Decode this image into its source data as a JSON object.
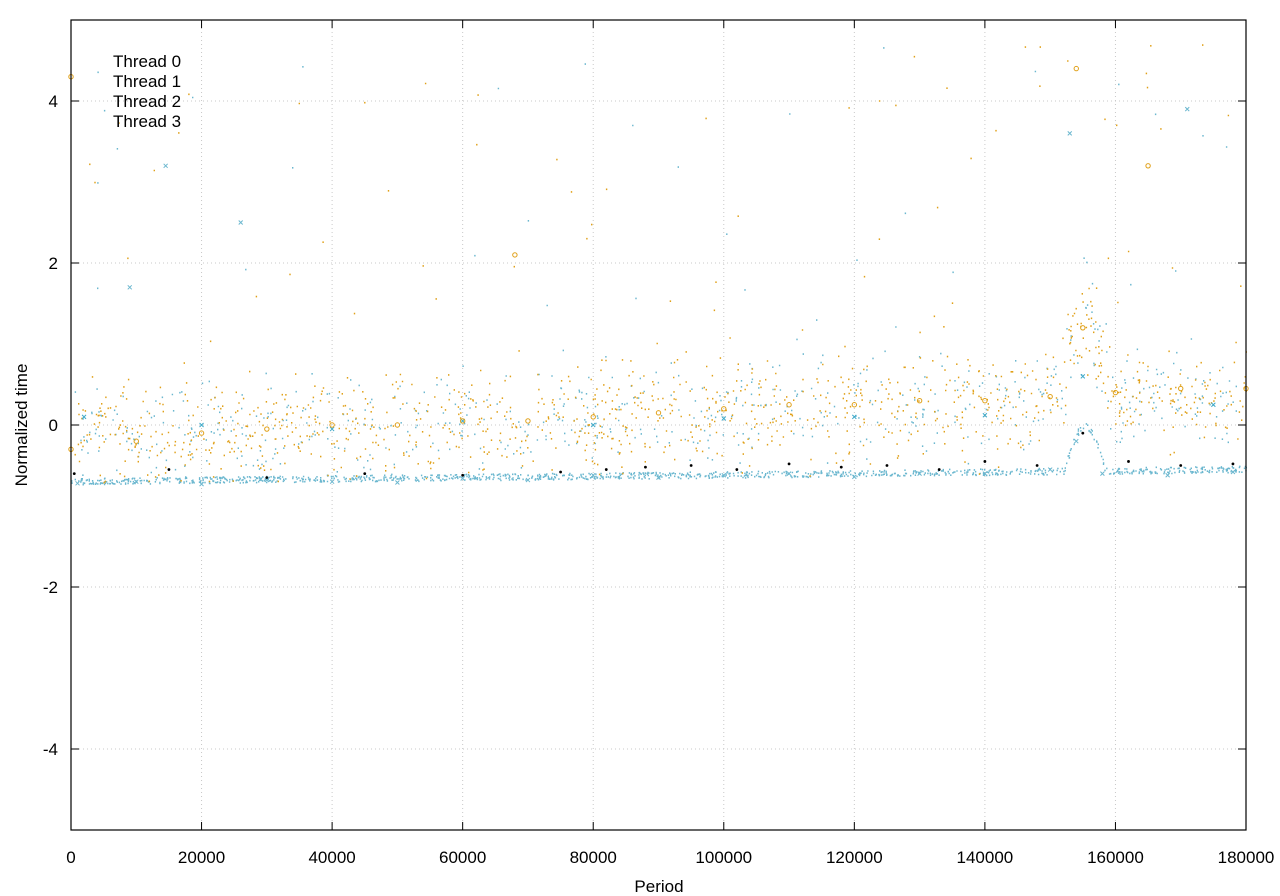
{
  "chart_data": {
    "type": "scatter",
    "xlabel": "Period",
    "ylabel": "Normalized time",
    "xlim": [
      0,
      180000
    ],
    "ylim": [
      -5,
      5
    ],
    "x_ticks": [
      "0",
      "20000",
      "40000",
      "60000",
      "80000",
      "100000",
      "120000",
      "140000",
      "160000",
      "180000"
    ],
    "y_ticks": [
      "-4",
      "-2",
      "0",
      "2",
      "4"
    ],
    "grid": true,
    "legend_position": "top-left",
    "series": [
      {
        "name": "Thread 0",
        "color": "#000000",
        "marker": "dot",
        "points": [
          [
            500,
            -0.6
          ],
          [
            15000,
            -0.55
          ],
          [
            30000,
            -0.65
          ],
          [
            45000,
            -0.6
          ],
          [
            60000,
            -0.62
          ],
          [
            75000,
            -0.58
          ],
          [
            82000,
            -0.55
          ],
          [
            88000,
            -0.52
          ],
          [
            95000,
            -0.5
          ],
          [
            102000,
            -0.55
          ],
          [
            110000,
            -0.48
          ],
          [
            118000,
            -0.52
          ],
          [
            125000,
            -0.5
          ],
          [
            133000,
            -0.55
          ],
          [
            140000,
            -0.45
          ],
          [
            148000,
            -0.5
          ],
          [
            155000,
            -0.1
          ],
          [
            162000,
            -0.45
          ],
          [
            170000,
            -0.5
          ],
          [
            178000,
            -0.48
          ]
        ]
      },
      {
        "name": "Thread 1",
        "color": "#6bb7cf",
        "marker": "cross",
        "points": [
          [
            1000,
            -0.72
          ],
          [
            10000,
            -0.7
          ],
          [
            20000,
            -0.73
          ],
          [
            30000,
            -0.68
          ],
          [
            40000,
            -0.7
          ],
          [
            50000,
            -0.71
          ],
          [
            60000,
            -0.66
          ],
          [
            70000,
            -0.68
          ],
          [
            80000,
            -0.62
          ],
          [
            90000,
            -0.65
          ],
          [
            100000,
            -0.62
          ],
          [
            110000,
            -0.6
          ],
          [
            120000,
            -0.64
          ],
          [
            130000,
            -0.6
          ],
          [
            140000,
            -0.6
          ],
          [
            150000,
            -0.55
          ],
          [
            154000,
            -0.2
          ],
          [
            158000,
            -0.6
          ],
          [
            168000,
            -0.62
          ],
          [
            178000,
            -0.58
          ],
          [
            14500,
            3.2
          ],
          [
            26000,
            2.5
          ],
          [
            9000,
            1.7
          ],
          [
            153000,
            3.6
          ],
          [
            171000,
            3.9
          ]
        ]
      },
      {
        "name": "Thread 2",
        "color": "#3ea9c9",
        "marker": "cross",
        "points": [
          [
            2000,
            0.1
          ],
          [
            20000,
            0.0
          ],
          [
            40000,
            -0.05
          ],
          [
            60000,
            0.05
          ],
          [
            80000,
            0.0
          ],
          [
            100000,
            0.08
          ],
          [
            120000,
            0.1
          ],
          [
            140000,
            0.12
          ],
          [
            155000,
            0.6
          ],
          [
            175000,
            0.25
          ]
        ]
      },
      {
        "name": "Thread 3",
        "color": "#e0a018",
        "marker": "circle",
        "points": [
          [
            0,
            -0.3
          ],
          [
            10000,
            -0.2
          ],
          [
            20000,
            -0.1
          ],
          [
            30000,
            -0.05
          ],
          [
            40000,
            0.0
          ],
          [
            50000,
            0.0
          ],
          [
            60000,
            0.05
          ],
          [
            70000,
            0.05
          ],
          [
            80000,
            0.1
          ],
          [
            90000,
            0.15
          ],
          [
            100000,
            0.2
          ],
          [
            110000,
            0.25
          ],
          [
            120000,
            0.25
          ],
          [
            130000,
            0.3
          ],
          [
            140000,
            0.3
          ],
          [
            150000,
            0.35
          ],
          [
            155000,
            1.2
          ],
          [
            160000,
            0.4
          ],
          [
            170000,
            0.45
          ],
          [
            180000,
            0.45
          ],
          [
            0,
            4.3
          ],
          [
            68000,
            2.1
          ],
          [
            154000,
            4.4
          ],
          [
            165000,
            3.2
          ]
        ]
      }
    ]
  }
}
